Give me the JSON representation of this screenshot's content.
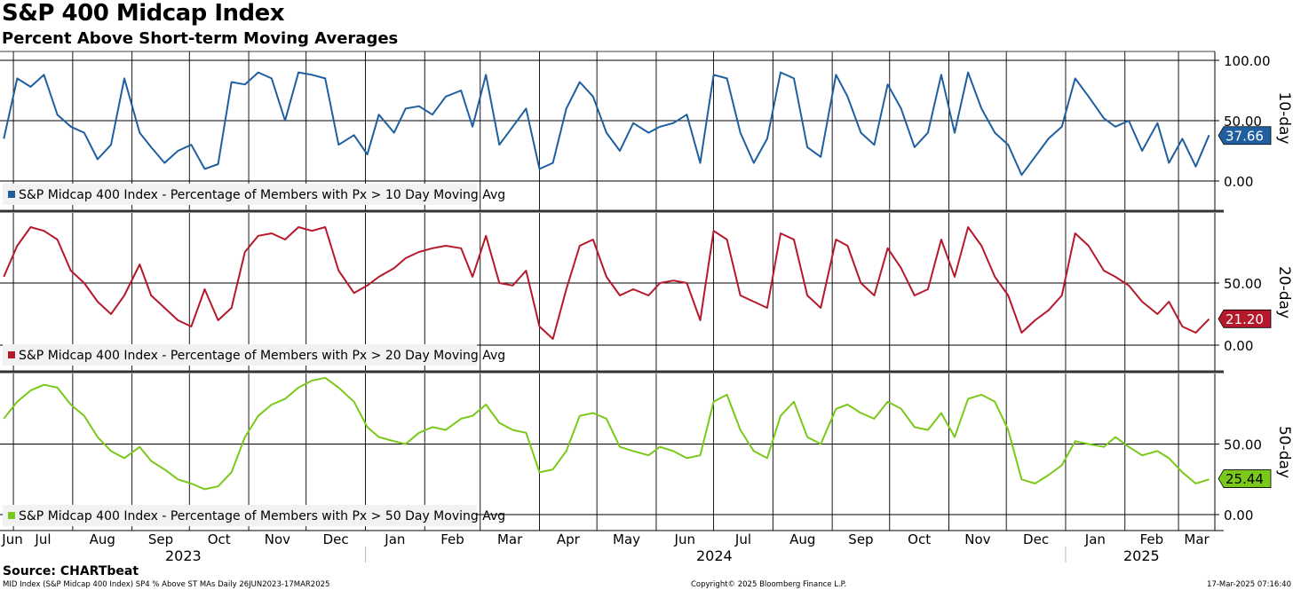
{
  "header": {
    "title": "S&P 400 Midcap Index",
    "subtitle": "Percent Above Short-term Moving Averages"
  },
  "footer": {
    "source": "Source: CHARTbeat",
    "left_note": "MID Index (S&P Midcap 400 Index) SP4 % Above ST MAs  Daily 26JUN2023-17MAR2025",
    "copyright": "Copyright© 2025 Bloomberg Finance L.P.",
    "timestamp": "17-Mar-2025 07:16:40"
  },
  "chart_data": [
    {
      "type": "line",
      "panel_label": "10-day",
      "legend": "S&P Midcap 400 Index - Percentage of Members with Px > 10 Day Moving Avg",
      "color": "#1f5fa0",
      "last_value": "37.66",
      "yticks": [
        "100.00",
        "50.00",
        "0.00"
      ],
      "ylim": [
        0,
        100
      ],
      "x": [
        "2023-06-26",
        "2023-07-03",
        "2023-07-10",
        "2023-07-17",
        "2023-07-24",
        "2023-07-31",
        "2023-08-07",
        "2023-08-14",
        "2023-08-21",
        "2023-08-28",
        "2023-09-05",
        "2023-09-11",
        "2023-09-18",
        "2023-09-25",
        "2023-10-02",
        "2023-10-09",
        "2023-10-16",
        "2023-10-23",
        "2023-10-30",
        "2023-11-06",
        "2023-11-13",
        "2023-11-20",
        "2023-11-27",
        "2023-12-04",
        "2023-12-11",
        "2023-12-18",
        "2023-12-26",
        "2024-01-02",
        "2024-01-08",
        "2024-01-16",
        "2024-01-22",
        "2024-01-29",
        "2024-02-05",
        "2024-02-12",
        "2024-02-20",
        "2024-02-26",
        "2024-03-04",
        "2024-03-11",
        "2024-03-18",
        "2024-03-25",
        "2024-04-01",
        "2024-04-08",
        "2024-04-15",
        "2024-04-22",
        "2024-04-29",
        "2024-05-06",
        "2024-05-13",
        "2024-05-20",
        "2024-05-28",
        "2024-06-03",
        "2024-06-10",
        "2024-06-17",
        "2024-06-24",
        "2024-07-01",
        "2024-07-08",
        "2024-07-15",
        "2024-07-22",
        "2024-07-29",
        "2024-08-05",
        "2024-08-12",
        "2024-08-19",
        "2024-08-26",
        "2024-09-03",
        "2024-09-09",
        "2024-09-16",
        "2024-09-23",
        "2024-09-30",
        "2024-10-07",
        "2024-10-14",
        "2024-10-21",
        "2024-10-28",
        "2024-11-04",
        "2024-11-11",
        "2024-11-18",
        "2024-11-25",
        "2024-12-02",
        "2024-12-09",
        "2024-12-16",
        "2024-12-23",
        "2024-12-30",
        "2025-01-06",
        "2025-01-13",
        "2025-01-21",
        "2025-01-27",
        "2025-02-03",
        "2025-02-10",
        "2025-02-18",
        "2025-02-24",
        "2025-03-03",
        "2025-03-10",
        "2025-03-17"
      ],
      "values": [
        35,
        85,
        78,
        88,
        55,
        45,
        40,
        18,
        30,
        85,
        40,
        28,
        15,
        25,
        30,
        10,
        14,
        82,
        80,
        90,
        85,
        50,
        90,
        88,
        85,
        30,
        38,
        22,
        55,
        40,
        60,
        62,
        55,
        70,
        75,
        45,
        88,
        30,
        45,
        60,
        10,
        15,
        60,
        82,
        70,
        40,
        25,
        48,
        40,
        45,
        48,
        55,
        15,
        88,
        85,
        40,
        15,
        35,
        90,
        85,
        28,
        20,
        88,
        70,
        40,
        30,
        80,
        60,
        28,
        40,
        88,
        40,
        90,
        60,
        40,
        30,
        5,
        20,
        35,
        45,
        85,
        70,
        52,
        45,
        50,
        25,
        48,
        15,
        35,
        12,
        38
      ]
    },
    {
      "type": "line",
      "panel_label": "20-day",
      "legend": "S&P Midcap 400 Index - Percentage of Members with Px > 20 Day Moving Avg",
      "color": "#b5192c",
      "last_value": "21.20",
      "yticks": [
        "50.00",
        "0.00"
      ],
      "ylim": [
        0,
        100
      ],
      "x": [
        "2023-06-26",
        "2023-07-03",
        "2023-07-10",
        "2023-07-17",
        "2023-07-24",
        "2023-07-31",
        "2023-08-07",
        "2023-08-14",
        "2023-08-21",
        "2023-08-28",
        "2023-09-05",
        "2023-09-11",
        "2023-09-18",
        "2023-09-25",
        "2023-10-02",
        "2023-10-09",
        "2023-10-16",
        "2023-10-23",
        "2023-10-30",
        "2023-11-06",
        "2023-11-13",
        "2023-11-20",
        "2023-11-27",
        "2023-12-04",
        "2023-12-11",
        "2023-12-18",
        "2023-12-26",
        "2024-01-02",
        "2024-01-08",
        "2024-01-16",
        "2024-01-22",
        "2024-01-29",
        "2024-02-05",
        "2024-02-12",
        "2024-02-20",
        "2024-02-26",
        "2024-03-04",
        "2024-03-11",
        "2024-03-18",
        "2024-03-25",
        "2024-04-01",
        "2024-04-08",
        "2024-04-15",
        "2024-04-22",
        "2024-04-29",
        "2024-05-06",
        "2024-05-13",
        "2024-05-20",
        "2024-05-28",
        "2024-06-03",
        "2024-06-10",
        "2024-06-17",
        "2024-06-24",
        "2024-07-01",
        "2024-07-08",
        "2024-07-15",
        "2024-07-22",
        "2024-07-29",
        "2024-08-05",
        "2024-08-12",
        "2024-08-19",
        "2024-08-26",
        "2024-09-03",
        "2024-09-09",
        "2024-09-16",
        "2024-09-23",
        "2024-09-30",
        "2024-10-07",
        "2024-10-14",
        "2024-10-21",
        "2024-10-28",
        "2024-11-04",
        "2024-11-11",
        "2024-11-18",
        "2024-11-25",
        "2024-12-02",
        "2024-12-09",
        "2024-12-16",
        "2024-12-23",
        "2024-12-30",
        "2025-01-06",
        "2025-01-13",
        "2025-01-21",
        "2025-01-27",
        "2025-02-03",
        "2025-02-10",
        "2025-02-18",
        "2025-02-24",
        "2025-03-03",
        "2025-03-10",
        "2025-03-17"
      ],
      "values": [
        55,
        80,
        95,
        92,
        85,
        60,
        50,
        35,
        25,
        40,
        65,
        40,
        30,
        20,
        15,
        45,
        20,
        30,
        75,
        88,
        90,
        85,
        95,
        92,
        95,
        60,
        42,
        48,
        55,
        62,
        70,
        75,
        78,
        80,
        78,
        55,
        88,
        50,
        48,
        60,
        15,
        5,
        45,
        80,
        85,
        55,
        40,
        45,
        40,
        50,
        52,
        50,
        20,
        92,
        85,
        40,
        35,
        30,
        90,
        85,
        40,
        30,
        85,
        80,
        50,
        40,
        78,
        62,
        40,
        45,
        85,
        55,
        95,
        80,
        55,
        40,
        10,
        20,
        28,
        40,
        90,
        80,
        60,
        55,
        48,
        35,
        25,
        35,
        15,
        10,
        21
      ]
    },
    {
      "type": "line",
      "panel_label": "50-day",
      "legend": "S&P Midcap 400 Index - Percentage of Members with Px > 50 Day Moving Avg",
      "color": "#7ac91a",
      "last_value": "25.44",
      "yticks": [
        "50.00",
        "0.00"
      ],
      "ylim": [
        0,
        100
      ],
      "x": [
        "2023-06-26",
        "2023-07-03",
        "2023-07-10",
        "2023-07-17",
        "2023-07-24",
        "2023-07-31",
        "2023-08-07",
        "2023-08-14",
        "2023-08-21",
        "2023-08-28",
        "2023-09-05",
        "2023-09-11",
        "2023-09-18",
        "2023-09-25",
        "2023-10-02",
        "2023-10-09",
        "2023-10-16",
        "2023-10-23",
        "2023-10-30",
        "2023-11-06",
        "2023-11-13",
        "2023-11-20",
        "2023-11-27",
        "2023-12-04",
        "2023-12-11",
        "2023-12-18",
        "2023-12-26",
        "2024-01-02",
        "2024-01-08",
        "2024-01-16",
        "2024-01-22",
        "2024-01-29",
        "2024-02-05",
        "2024-02-12",
        "2024-02-20",
        "2024-02-26",
        "2024-03-04",
        "2024-03-11",
        "2024-03-18",
        "2024-03-25",
        "2024-04-01",
        "2024-04-08",
        "2024-04-15",
        "2024-04-22",
        "2024-04-29",
        "2024-05-06",
        "2024-05-13",
        "2024-05-20",
        "2024-05-28",
        "2024-06-03",
        "2024-06-10",
        "2024-06-17",
        "2024-06-24",
        "2024-07-01",
        "2024-07-08",
        "2024-07-15",
        "2024-07-22",
        "2024-07-29",
        "2024-08-05",
        "2024-08-12",
        "2024-08-19",
        "2024-08-26",
        "2024-09-03",
        "2024-09-09",
        "2024-09-16",
        "2024-09-23",
        "2024-09-30",
        "2024-10-07",
        "2024-10-14",
        "2024-10-21",
        "2024-10-28",
        "2024-11-04",
        "2024-11-11",
        "2024-11-18",
        "2024-11-25",
        "2024-12-02",
        "2024-12-09",
        "2024-12-16",
        "2024-12-23",
        "2024-12-30",
        "2025-01-06",
        "2025-01-13",
        "2025-01-21",
        "2025-01-27",
        "2025-02-03",
        "2025-02-10",
        "2025-02-18",
        "2025-02-24",
        "2025-03-03",
        "2025-03-10",
        "2025-03-17"
      ],
      "values": [
        68,
        80,
        88,
        92,
        90,
        78,
        70,
        55,
        45,
        40,
        48,
        38,
        32,
        25,
        22,
        18,
        20,
        30,
        55,
        70,
        78,
        82,
        90,
        95,
        97,
        90,
        80,
        62,
        55,
        52,
        50,
        58,
        62,
        60,
        68,
        70,
        78,
        65,
        60,
        58,
        30,
        32,
        45,
        70,
        72,
        68,
        48,
        45,
        42,
        48,
        45,
        40,
        42,
        80,
        85,
        60,
        45,
        40,
        70,
        80,
        55,
        50,
        75,
        78,
        72,
        68,
        80,
        75,
        62,
        60,
        72,
        55,
        82,
        85,
        80,
        60,
        25,
        22,
        28,
        35,
        52,
        50,
        48,
        55,
        48,
        42,
        45,
        40,
        30,
        22,
        25
      ]
    }
  ],
  "x_axis": {
    "months": [
      "Jun",
      "Jul",
      "Aug",
      "Sep",
      "Oct",
      "Nov",
      "Dec",
      "Jan",
      "Feb",
      "Mar",
      "Apr",
      "May",
      "Jun",
      "Jul",
      "Aug",
      "Sep",
      "Oct",
      "Nov",
      "Dec",
      "Jan",
      "Feb",
      "Mar"
    ],
    "years": [
      "2023",
      "2024",
      "2025"
    ]
  }
}
